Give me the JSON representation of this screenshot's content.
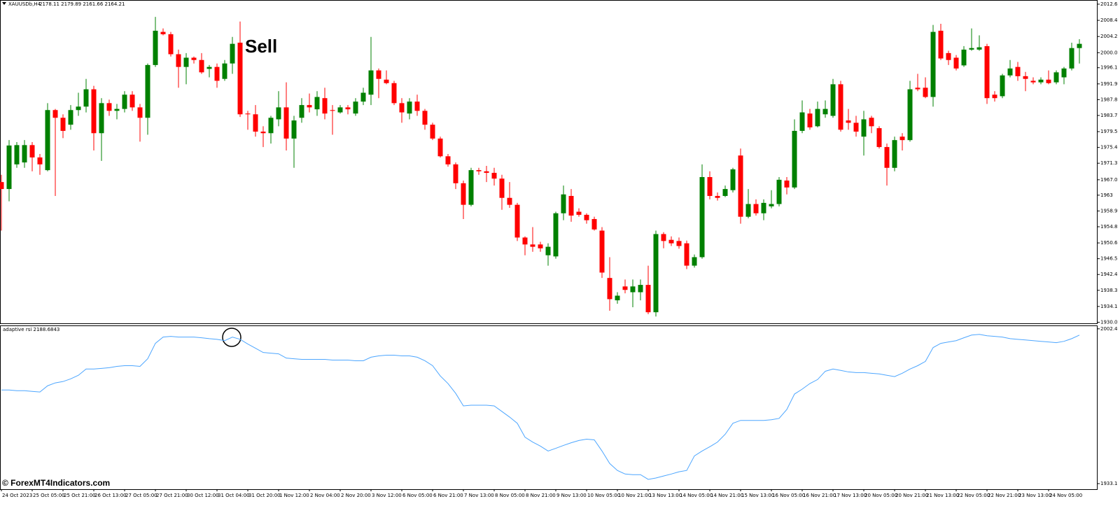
{
  "symbol": "XAUUSDb,H4",
  "ohlc_info": "2178.11 2179.89 2161.66 2164.21",
  "indicator_label": "adaptive rsi 2188.6843",
  "annotation": "Sell",
  "watermark": "© ForexMT4Indicators.com",
  "chart_data": [
    {
      "type": "candlestick",
      "up_color": "#008000",
      "down_color": "#ff0000",
      "ylim": [
        1929.9,
        2013.5
      ],
      "yticks": [
        2012.6,
        2008.4,
        2004.2,
        {
          "value": 2000.0,
          "label": "2000.0"
        },
        1996.1,
        1991.9,
        1987.8,
        1983.7,
        1979.5,
        1975.4,
        1971.3,
        {
          "value": 1967.0,
          "label": "1967.0"
        },
        1963.0,
        1958.9,
        1954.8,
        1950.6,
        1946.5,
        1942.4,
        1938.3,
        1934.1,
        {
          "value": 1930.0,
          "label": "1930.0"
        }
      ],
      "categories": [
        "24 Oct 2023",
        null,
        null,
        null,
        "25 Oct 05:00",
        null,
        null,
        null,
        "25 Oct 21:00",
        null,
        null,
        null,
        "26 Oct 13:00",
        null,
        null,
        null,
        "27 Oct 05:00",
        null,
        null,
        null,
        "27 Oct 21:00",
        null,
        null,
        null,
        "30 Oct 12:00",
        null,
        null,
        null,
        "31 Oct 04:00",
        null,
        null,
        null,
        "31 Oct 20:00",
        null,
        null,
        null,
        "1 Nov 12:00",
        null,
        null,
        null,
        "2 Nov 04:00",
        null,
        null,
        null,
        "2 Nov 20:00",
        null,
        null,
        null,
        "3 Nov 12:00",
        null,
        null,
        null,
        "6 Nov 05:00",
        null,
        null,
        null,
        "6 Nov 21:00",
        null,
        null,
        null,
        "7 Nov 13:00",
        null,
        null,
        null,
        "8 Nov 05:00",
        null,
        null,
        null,
        "8 Nov 21:00",
        null,
        null,
        null,
        "9 Nov 13:00",
        null,
        null,
        null,
        "10 Nov 05:00",
        null,
        null,
        null,
        "10 Nov 21:00",
        null,
        null,
        null,
        "13 Nov 13:00",
        null,
        null,
        null,
        "14 Nov 05:00",
        null,
        null,
        null,
        "14 Nov 21:00",
        null,
        null,
        null,
        "15 Nov 13:00",
        null,
        null,
        null,
        "16 Nov 05:00",
        null,
        null,
        null,
        "16 Nov 21:00",
        null,
        null,
        null,
        "17 Nov 13:00",
        null,
        null,
        null,
        "20 Nov 05:00",
        null,
        null,
        null,
        "20 Nov 21:00",
        null,
        null,
        null,
        "21 Nov 13:00",
        null,
        null,
        null,
        "22 Nov 05:00",
        null,
        null,
        null,
        "22 Nov 21:00",
        null,
        null,
        null,
        "23 Nov 13:00",
        null,
        null,
        null,
        "24 Nov 05:00",
        null,
        null,
        null,
        null
      ],
      "ohlc": [
        [
          1966.4,
          1968.3,
          1953.8,
          1964.6
        ],
        [
          1964.6,
          1977.3,
          1961.4,
          1975.9
        ],
        [
          1971.0,
          1976.8,
          1970.1,
          1976.0
        ],
        [
          1971.5,
          1977.3,
          1970.1,
          1976.0
        ],
        [
          1976.0,
          1976.8,
          1969.2,
          1972.8
        ],
        [
          1972.8,
          1973.7,
          1968.3,
          1971.0
        ],
        [
          1969.5,
          1986.9,
          1969.2,
          1985.1
        ],
        [
          1985.1,
          1985.4,
          1962.8,
          1983.1
        ],
        [
          1983.1,
          1984.0,
          1977.8,
          1979.7
        ],
        [
          1981.3,
          1986.4,
          1980.0,
          1985.1
        ],
        [
          1985.1,
          1989.6,
          1983.6,
          1986.0
        ],
        [
          1986.0,
          1993.2,
          1984.5,
          1990.5
        ],
        [
          1990.5,
          1991.4,
          1974.6,
          1979.1
        ],
        [
          1979.1,
          1988.2,
          1971.9,
          1986.9
        ],
        [
          1986.9,
          1987.8,
          1983.6,
          1984.9
        ],
        [
          1984.9,
          1986.7,
          1982.7,
          1985.4
        ],
        [
          1985.4,
          1990.0,
          1984.5,
          1989.1
        ],
        [
          1989.1,
          1990.0,
          1984.9,
          1985.8
        ],
        [
          1985.8,
          1986.7,
          1976.9,
          1983.1
        ],
        [
          1983.1,
          1997.2,
          1978.7,
          1996.8
        ],
        [
          1996.8,
          2009.3,
          1996.3,
          2005.7
        ],
        [
          2005.4,
          2006.3,
          2004.5,
          2004.8
        ],
        [
          2004.8,
          2005.4,
          1999.0,
          1999.6
        ],
        [
          1999.6,
          2000.8,
          1990.9,
          1996.3
        ],
        [
          1996.3,
          1999.9,
          1991.8,
          1998.7
        ],
        [
          1998.7,
          1999.0,
          1997.2,
          1998.1
        ],
        [
          1998.1,
          1999.9,
          1994.5,
          1994.9
        ],
        [
          1995.8,
          1996.8,
          1993.6,
          1996.3
        ],
        [
          1996.3,
          1997.2,
          1990.9,
          1992.7
        ],
        [
          1993.2,
          1998.1,
          1992.7,
          1997.2
        ],
        [
          1997.2,
          2004.1,
          1994.5,
          2002.3
        ],
        [
          2002.6,
          2008.1,
          1983.3,
          1984.0
        ],
        [
          1984.2,
          1984.9,
          1980.0,
          1984.0
        ],
        [
          1984.0,
          1986.4,
          1978.2,
          1979.5
        ],
        [
          1979.5,
          1980.9,
          1975.5,
          1979.1
        ],
        [
          1979.1,
          1983.6,
          1976.4,
          1983.1
        ],
        [
          1982.7,
          1990.0,
          1980.9,
          1985.8
        ],
        [
          1985.8,
          1992.3,
          1974.6,
          1977.7
        ],
        [
          1977.7,
          1983.6,
          1970.1,
          1982.4
        ],
        [
          1983.1,
          1988.2,
          1981.8,
          1986.4
        ],
        [
          1986.4,
          1989.4,
          1984.5,
          1985.8
        ],
        [
          1985.3,
          1990.0,
          1983.6,
          1988.5
        ],
        [
          1988.2,
          1990.9,
          1982.7,
          1984.2
        ],
        [
          1985.1,
          1986.4,
          1978.7,
          1984.9
        ],
        [
          1984.5,
          1986.4,
          1984.2,
          1985.8
        ],
        [
          1985.8,
          1986.4,
          1984.0,
          1985.3
        ],
        [
          1984.2,
          1988.2,
          1983.6,
          1987.3
        ],
        [
          1987.3,
          1990.9,
          1986.4,
          1989.6
        ],
        [
          1989.1,
          2004.1,
          1986.4,
          1995.4
        ],
        [
          1995.4,
          1995.9,
          1988.2,
          1993.2
        ],
        [
          1993.0,
          1995.4,
          1991.8,
          1992.1
        ],
        [
          1992.1,
          1992.7,
          1986.4,
          1986.9
        ],
        [
          1986.9,
          1988.2,
          1981.8,
          1984.5
        ],
        [
          1984.2,
          1988.2,
          1982.7,
          1987.3
        ],
        [
          1987.3,
          1989.1,
          1983.6,
          1984.9
        ],
        [
          1984.9,
          1985.4,
          1980.0,
          1981.3
        ],
        [
          1981.3,
          1981.8,
          1977.3,
          1977.7
        ],
        [
          1977.7,
          1978.2,
          1972.8,
          1973.1
        ],
        [
          1973.1,
          1973.7,
          1970.4,
          1971.0
        ],
        [
          1971.0,
          1971.5,
          1964.6,
          1966.1
        ],
        [
          1966.1,
          1966.8,
          1956.8,
          1960.5
        ],
        [
          1960.5,
          1970.1,
          1960.1,
          1969.5
        ],
        [
          1969.5,
          1970.1,
          1968.3,
          1969.2
        ],
        [
          1969.2,
          1970.6,
          1966.4,
          1968.8
        ],
        [
          1968.8,
          1970.1,
          1965.5,
          1967.3
        ],
        [
          1967.3,
          1968.3,
          1959.2,
          1962.3
        ],
        [
          1962.3,
          1966.4,
          1959.7,
          1960.5
        ],
        [
          1960.5,
          1961.0,
          1951.1,
          1952.0
        ],
        [
          1952.0,
          1952.3,
          1947.4,
          1950.2
        ],
        [
          1950.2,
          1954.7,
          1948.3,
          1949.6
        ],
        [
          1950.2,
          1950.9,
          1948.3,
          1949.2
        ],
        [
          1947.4,
          1950.5,
          1944.7,
          1949.6
        ],
        [
          1947.1,
          1958.7,
          1946.5,
          1958.3
        ],
        [
          1958.3,
          1965.5,
          1956.5,
          1963.2
        ],
        [
          1962.8,
          1964.6,
          1956.1,
          1957.7
        ],
        [
          1958.7,
          1959.6,
          1957.4,
          1957.9
        ],
        [
          1957.9,
          1958.3,
          1955.6,
          1956.5
        ],
        [
          1956.8,
          1957.4,
          1953.8,
          1954.1
        ],
        [
          1953.8,
          1954.7,
          1941.5,
          1942.9
        ],
        [
          1941.5,
          1946.9,
          1933.0,
          1936.0
        ],
        [
          1935.7,
          1937.8,
          1934.8,
          1936.9
        ],
        [
          1939.3,
          1941.1,
          1937.5,
          1938.4
        ],
        [
          1937.8,
          1941.1,
          1933.9,
          1939.3
        ],
        [
          1937.8,
          1941.1,
          1935.7,
          1939.7
        ],
        [
          1939.7,
          1944.7,
          1932.1,
          1932.6
        ],
        [
          1932.6,
          1953.8,
          1931.5,
          1952.9
        ],
        [
          1952.9,
          1953.4,
          1949.2,
          1951.1
        ],
        [
          1951.4,
          1952.3,
          1949.8,
          1950.5
        ],
        [
          1951.1,
          1952.0,
          1949.1,
          1949.8
        ],
        [
          1950.5,
          1951.2,
          1943.8,
          1944.7
        ],
        [
          1944.7,
          1947.6,
          1944.2,
          1946.9
        ],
        [
          1946.9,
          1971.0,
          1946.5,
          1967.7
        ],
        [
          1967.7,
          1969.2,
          1961.9,
          1962.8
        ],
        [
          1962.8,
          1963.7,
          1961.6,
          1962.3
        ],
        [
          1962.8,
          1965.5,
          1962.5,
          1964.6
        ],
        [
          1964.3,
          1970.1,
          1963.7,
          1969.7
        ],
        [
          1973.3,
          1975.1,
          1955.6,
          1957.4
        ],
        [
          1957.4,
          1964.6,
          1957.0,
          1960.7
        ],
        [
          1960.7,
          1961.9,
          1957.7,
          1958.3
        ],
        [
          1958.3,
          1961.9,
          1956.5,
          1961.0
        ],
        [
          1960.1,
          1964.3,
          1959.6,
          1960.7
        ],
        [
          1960.7,
          1967.7,
          1960.1,
          1967.0
        ],
        [
          1966.8,
          1967.7,
          1963.2,
          1965.0
        ],
        [
          1965.0,
          1982.7,
          1964.6,
          1979.7
        ],
        [
          1979.7,
          1987.6,
          1979.1,
          1984.5
        ],
        [
          1984.2,
          1985.4,
          1980.0,
          1980.6
        ],
        [
          1980.9,
          1987.3,
          1980.6,
          1985.4
        ],
        [
          1984.0,
          1987.6,
          1983.1,
          1985.4
        ],
        [
          1983.6,
          1993.2,
          1983.1,
          1991.8
        ],
        [
          1991.8,
          1992.7,
          1979.5,
          1980.0
        ],
        [
          1982.4,
          1985.4,
          1980.0,
          1981.8
        ],
        [
          1981.8,
          1983.6,
          1978.2,
          1979.5
        ],
        [
          1978.2,
          1984.9,
          1973.3,
          1982.7
        ],
        [
          1983.1,
          1983.6,
          1979.1,
          1980.9
        ],
        [
          1980.4,
          1980.9,
          1975.1,
          1975.5
        ],
        [
          1975.5,
          1976.4,
          1965.5,
          1970.1
        ],
        [
          1970.1,
          1978.2,
          1969.2,
          1977.3
        ],
        [
          1978.2,
          1979.1,
          1974.6,
          1977.3
        ],
        [
          1977.3,
          1992.7,
          1976.9,
          1990.5
        ],
        [
          1990.9,
          1994.5,
          1990.0,
          1990.5
        ],
        [
          1990.9,
          1993.6,
          1988.2,
          1988.5
        ],
        [
          1988.5,
          2007.2,
          1986.0,
          2005.4
        ],
        [
          2005.7,
          2007.5,
          1998.1,
          1998.5
        ],
        [
          1999.9,
          2000.5,
          1996.8,
          1998.1
        ],
        [
          1998.7,
          1999.4,
          1995.4,
          1995.9
        ],
        [
          1996.7,
          2001.7,
          1996.3,
          2000.8
        ],
        [
          2000.8,
          2006.3,
          2000.5,
          2001.2
        ],
        [
          2000.8,
          2004.5,
          2000.5,
          2001.4
        ],
        [
          2001.7,
          2002.3,
          1986.7,
          1988.2
        ],
        [
          1989.1,
          1990.0,
          1987.3,
          1988.2
        ],
        [
          1988.7,
          1994.5,
          1988.2,
          1994.1
        ],
        [
          1994.1,
          1998.1,
          1993.6,
          1995.9
        ],
        [
          1996.3,
          1997.6,
          1992.7,
          1993.9
        ],
        [
          1993.9,
          1995.0,
          1990.0,
          1993.2
        ],
        [
          1992.7,
          1993.6,
          1991.8,
          1992.3
        ],
        [
          1992.3,
          1993.6,
          1991.8,
          1993.0
        ],
        [
          1993.0,
          1995.4,
          1991.8,
          1992.1
        ],
        [
          1992.3,
          1995.4,
          1991.8,
          1994.9
        ],
        [
          1993.6,
          1996.3,
          1991.8,
          1995.9
        ],
        [
          1995.9,
          2002.6,
          1995.4,
          2001.2
        ],
        [
          2001.2,
          2003.5,
          1997.2,
          2002.3
        ]
      ]
    },
    {
      "type": "line",
      "color": "#4da6ff",
      "ylim": [
        1930.6,
        2003.6
      ],
      "yticks": [
        2002.4,
        1933.1
      ],
      "values": [
        1975.0,
        1975.0,
        1974.7,
        1974.7,
        1974.4,
        1974.1,
        1976.9,
        1978.2,
        1978.8,
        1980.0,
        1981.6,
        1984.4,
        1984.4,
        1984.7,
        1985.0,
        1985.6,
        1985.9,
        1985.9,
        1985.6,
        1989.0,
        1995.9,
        1998.7,
        1999.0,
        1998.7,
        1998.7,
        1998.7,
        1998.4,
        1998.0,
        1997.7,
        1997.1,
        1998.7,
        1997.7,
        1995.6,
        1993.7,
        1991.8,
        1991.5,
        1991.2,
        1989.3,
        1989.0,
        1988.7,
        1988.7,
        1988.7,
        1988.7,
        1988.4,
        1988.4,
        1988.4,
        1988.1,
        1988.1,
        1989.7,
        1990.3,
        1990.6,
        1990.6,
        1990.3,
        1990.3,
        1989.7,
        1988.1,
        1985.9,
        1981.3,
        1977.9,
        1973.5,
        1967.9,
        1968.2,
        1968.2,
        1968.2,
        1967.9,
        1965.4,
        1962.9,
        1960.1,
        1953.9,
        1951.7,
        1949.9,
        1947.7,
        1948.9,
        1950.2,
        1951.4,
        1952.4,
        1953.0,
        1952.7,
        1947.7,
        1942.1,
        1939.0,
        1937.4,
        1937.1,
        1937.1,
        1935.0,
        1935.6,
        1936.5,
        1937.4,
        1938.4,
        1939.0,
        1945.5,
        1947.7,
        1949.6,
        1951.7,
        1955.2,
        1960.1,
        1961.4,
        1961.4,
        1961.4,
        1961.4,
        1961.7,
        1962.3,
        1966.3,
        1973.2,
        1975.4,
        1977.9,
        1979.7,
        1983.4,
        1984.4,
        1983.8,
        1983.1,
        1982.8,
        1982.8,
        1982.5,
        1982.2,
        1981.6,
        1981.0,
        1982.5,
        1984.4,
        1985.9,
        1987.8,
        1994.0,
        1995.9,
        1996.5,
        1997.1,
        1998.4,
        1999.6,
        1999.9,
        1999.3,
        1999.0,
        1998.7,
        1998.0,
        1997.7,
        1997.4,
        1997.1,
        1996.8,
        1996.5,
        1996.2,
        1996.8,
        1998.0,
        1999.6
      ]
    }
  ]
}
